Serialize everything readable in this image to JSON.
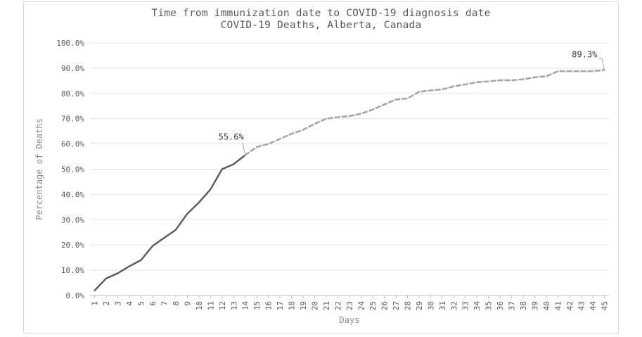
{
  "chart_data": {
    "type": "line",
    "title": "Time from immunization date to COVID-19 diagnosis date",
    "subtitle": "COVID-19 Deaths, Alberta, Canada",
    "xlabel": "Days",
    "ylabel": "Percentage of Deaths",
    "ylim": [
      0,
      100
    ],
    "y_ticks": [
      "0.0%",
      "10.0%",
      "20.0%",
      "30.0%",
      "40.0%",
      "50.0%",
      "60.0%",
      "70.0%",
      "80.0%",
      "90.0%",
      "100.0%"
    ],
    "grid": true,
    "x": [
      1,
      2,
      3,
      4,
      5,
      6,
      7,
      8,
      9,
      10,
      11,
      12,
      13,
      14,
      15,
      16,
      17,
      18,
      19,
      20,
      21,
      22,
      23,
      24,
      25,
      26,
      27,
      28,
      29,
      30,
      31,
      32,
      33,
      34,
      35,
      36,
      37,
      38,
      39,
      40,
      41,
      42,
      43,
      44,
      45
    ],
    "series": [
      {
        "style": "solid",
        "color": "#595959",
        "x": [
          1,
          2,
          3,
          4,
          5,
          6,
          7,
          8,
          9,
          10,
          11,
          12,
          13,
          14
        ],
        "values": [
          2.0,
          6.8,
          8.8,
          11.6,
          14.0,
          19.6,
          22.8,
          26.0,
          32.4,
          36.8,
          42.0,
          50.0,
          52.0,
          55.6
        ]
      },
      {
        "style": "dashed",
        "color": "#a6a6a6",
        "x": [
          14,
          15,
          16,
          17,
          18,
          19,
          20,
          21,
          22,
          23,
          24,
          25,
          26,
          27,
          28,
          29,
          30,
          31,
          32,
          33,
          34,
          35,
          36,
          37,
          38,
          39,
          40,
          41,
          42,
          43,
          44,
          45
        ],
        "values": [
          55.6,
          58.8,
          60.0,
          62.0,
          64.0,
          65.6,
          68.0,
          70.0,
          70.6,
          71.0,
          72.0,
          73.6,
          75.6,
          77.6,
          78.0,
          80.6,
          81.2,
          81.6,
          82.8,
          83.6,
          84.4,
          84.8,
          85.2,
          85.2,
          85.6,
          86.4,
          86.8,
          88.8,
          88.8,
          88.8,
          88.8,
          89.3
        ]
      }
    ],
    "annotations": [
      {
        "x": 14,
        "value": 55.6,
        "text": "55.6%"
      },
      {
        "x": 45,
        "value": 89.3,
        "text": "89.3%"
      }
    ]
  }
}
